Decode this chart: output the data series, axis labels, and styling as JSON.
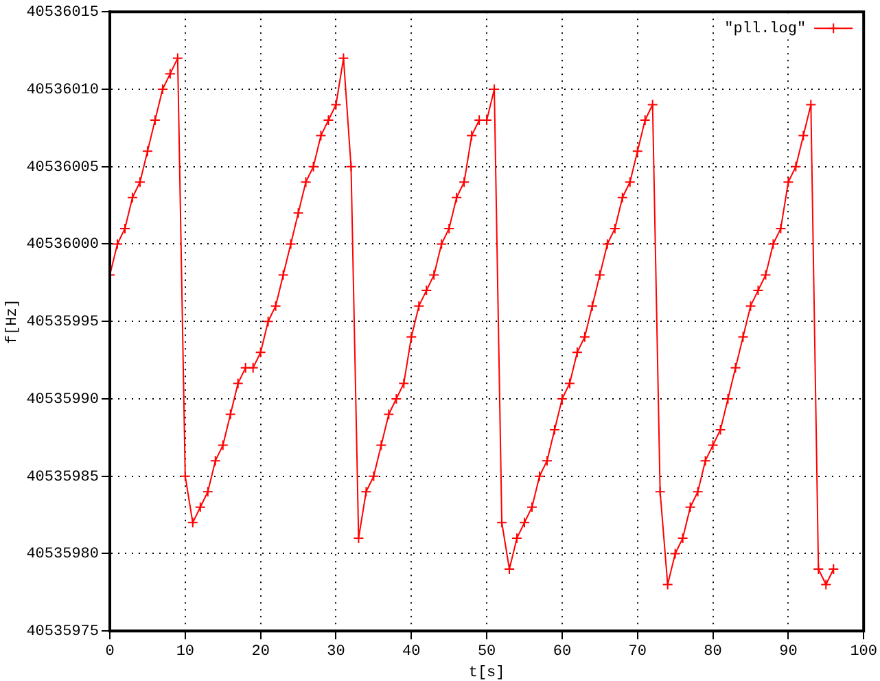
{
  "chart_data": {
    "type": "line",
    "xlabel": "t[s]",
    "ylabel": "f[Hz]",
    "x": [
      0,
      1,
      2,
      3,
      4,
      5,
      6,
      7,
      8,
      9,
      10,
      11,
      12,
      13,
      14,
      15,
      16,
      17,
      18,
      19,
      20,
      21,
      22,
      23,
      24,
      25,
      26,
      27,
      28,
      29,
      30,
      31,
      32,
      33,
      34,
      35,
      36,
      37,
      38,
      39,
      40,
      41,
      42,
      43,
      44,
      45,
      46,
      47,
      48,
      49,
      50,
      51,
      52,
      53,
      54,
      55,
      56,
      57,
      58,
      59,
      60,
      61,
      62,
      63,
      64,
      65,
      66,
      67,
      68,
      69,
      70,
      71,
      72,
      73,
      74,
      75,
      76,
      77,
      78,
      79,
      80,
      81,
      82,
      83,
      84,
      85,
      86,
      87,
      88,
      89,
      90,
      91,
      92,
      93,
      94,
      95,
      96
    ],
    "series": [
      {
        "name": "\"pll.log\"",
        "color": "#ff0000",
        "values": [
          40535998,
          40536000,
          40536001,
          40536003,
          40536004,
          40536006,
          40536008,
          40536010,
          40536011,
          40536012,
          40535985,
          40535982,
          40535983,
          40535984,
          40535986,
          40535987,
          40535989,
          40535991,
          40535992,
          40535992,
          40535993,
          40535995,
          40535996,
          40535998,
          40536000,
          40536002,
          40536004,
          40536005,
          40536007,
          40536008,
          40536009,
          40536012,
          40536005,
          40535981,
          40535984,
          40535985,
          40535987,
          40535989,
          40535990,
          40535991,
          40535994,
          40535996,
          40535997,
          40535998,
          40536000,
          40536001,
          40536003,
          40536004,
          40536007,
          40536008,
          40536008,
          40536010,
          40535982,
          40535979,
          40535981,
          40535982,
          40535983,
          40535985,
          40535986,
          40535988,
          40535990,
          40535991,
          40535993,
          40535994,
          40535996,
          40535998,
          40536000,
          40536001,
          40536003,
          40536004,
          40536006,
          40536008,
          40536009,
          40535984,
          40535978,
          40535980,
          40535981,
          40535983,
          40535984,
          40535986,
          40535987,
          40535988,
          40535990,
          40535992,
          40535994,
          40535996,
          40535997,
          40535998,
          40536000,
          40536001,
          40536004,
          40536005,
          40536007,
          40536009,
          40535979,
          40535978,
          40535979
        ]
      }
    ],
    "xlim": [
      0,
      100
    ],
    "xticks": [
      0,
      10,
      20,
      30,
      40,
      50,
      60,
      70,
      80,
      90,
      100
    ],
    "ylim": [
      40535975,
      40536015
    ],
    "yticks": [
      40535975,
      40535980,
      40535985,
      40535990,
      40535995,
      40536000,
      40536005,
      40536010,
      40536015
    ],
    "grid": true,
    "legend": "top right",
    "marker": "cross",
    "line_style": "solid"
  }
}
